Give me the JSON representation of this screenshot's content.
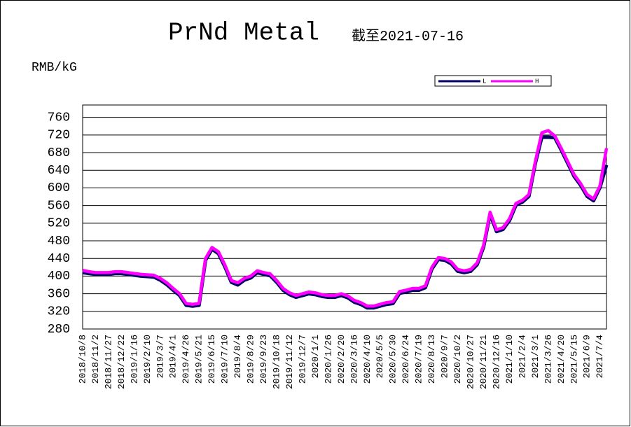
{
  "chart_data": {
    "type": "line",
    "title": "PrNd Metal",
    "subtitle": "截至2021-07-16",
    "y_label": "RMB/kG",
    "categories": [
      "2018/10/8",
      null,
      "2018/11/2",
      null,
      "2018/11/27",
      null,
      "2018/12/22",
      null,
      "2019/1/16",
      null,
      "2019/2/10",
      null,
      "2019/3/7",
      null,
      "2019/4/1",
      null,
      "2019/4/26",
      null,
      "2019/5/21",
      null,
      "2019/6/15",
      null,
      "2019/7/10",
      null,
      "2019/8/4",
      null,
      "2019/8/29",
      null,
      "2019/9/23",
      null,
      "2019/10/18",
      null,
      "2019/11/12",
      null,
      "2019/12/7",
      null,
      "2020/1/1",
      null,
      "2020/1/26",
      null,
      "2020/2/20",
      null,
      "2020/3/16",
      null,
      "2020/4/10",
      null,
      "2020/5/5",
      null,
      "2020/5/30",
      null,
      "2020/6/24",
      null,
      "2020/7/19",
      null,
      "2020/8/13",
      null,
      "2020/9/7",
      null,
      "2020/10/2",
      null,
      "2020/10/27",
      null,
      "2020/11/21",
      null,
      "2020/12/16",
      null,
      "2021/1/10",
      null,
      "2021/2/4",
      null,
      "2021/3/1",
      null,
      "2021/3/26",
      null,
      "2021/4/20",
      null,
      "2021/5/15",
      null,
      "2021/6/9",
      null,
      "2021/7/4",
      null
    ],
    "series": [
      {
        "name": "L",
        "color": "#000066",
        "values": [
          408,
          406,
          404,
          404,
          404,
          406,
          406,
          404,
          402,
          400,
          399,
          398,
          391,
          381,
          368,
          356,
          334,
          332,
          334,
          436,
          461,
          451,
          421,
          386,
          380,
          391,
          396,
          408,
          404,
          401,
          386,
          368,
          358,
          352,
          356,
          360,
          358,
          354,
          352,
          352,
          356,
          351,
          341,
          336,
          328,
          328,
          332,
          336,
          338,
          361,
          364,
          368,
          368,
          374,
          416,
          438,
          436,
          428,
          411,
          408,
          411,
          426,
          466,
          541,
          501,
          506,
          526,
          561,
          568,
          581,
          656,
          715,
          715,
          714,
          686,
          656,
          626,
          606,
          581,
          571,
          601,
          652
        ]
      },
      {
        "name": "H",
        "color": "#ff00ff",
        "values": [
          413,
          410,
          408,
          408,
          408,
          410,
          410,
          408,
          406,
          404,
          403,
          402,
          395,
          385,
          372,
          360,
          338,
          336,
          338,
          440,
          465,
          455,
          425,
          390,
          385,
          395,
          400,
          412,
          408,
          405,
          390,
          372,
          362,
          356,
          360,
          364,
          362,
          358,
          356,
          356,
          360,
          355,
          345,
          340,
          332,
          332,
          336,
          340,
          342,
          365,
          368,
          372,
          372,
          378,
          420,
          442,
          440,
          432,
          415,
          412,
          415,
          430,
          470,
          545,
          505,
          510,
          530,
          565,
          572,
          585,
          660,
          725,
          730,
          718,
          690,
          660,
          630,
          610,
          585,
          575,
          605,
          690
        ]
      }
    ],
    "ylim": [
      280,
      788
    ],
    "yticks": [
      280,
      320,
      360,
      400,
      440,
      480,
      520,
      560,
      600,
      640,
      680,
      720,
      760
    ],
    "grid": true,
    "legend": "top"
  }
}
